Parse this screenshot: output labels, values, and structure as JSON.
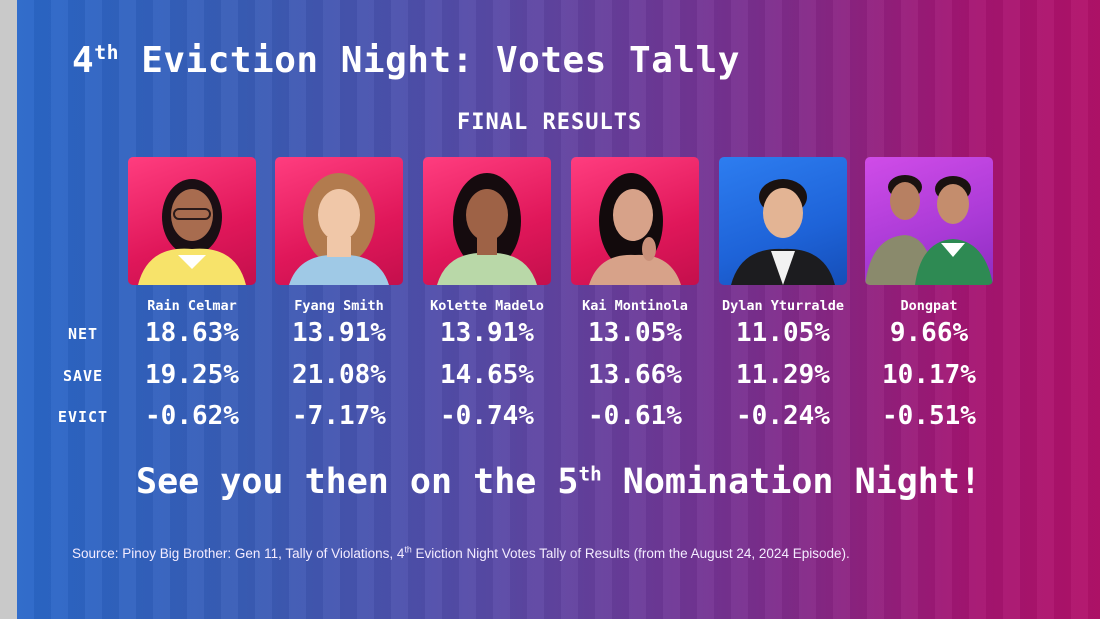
{
  "title": {
    "prefix": "4",
    "sup": "th",
    "suffix": " Eviction Night: Votes Tally"
  },
  "subtitle": "FINAL RESULTS",
  "row_labels": {
    "net": "NET",
    "save": "SAVE",
    "evict": "EVICT"
  },
  "housemates": [
    {
      "name": "Rain Celmar",
      "net": "18.63%",
      "save": "19.25%",
      "evict": "-0.62%",
      "photo_bg": "pink"
    },
    {
      "name": "Fyang Smith",
      "net": "13.91%",
      "save": "21.08%",
      "evict": "-7.17%",
      "photo_bg": "pink"
    },
    {
      "name": "Kolette Madelo",
      "net": "13.91%",
      "save": "14.65%",
      "evict": "-0.74%",
      "photo_bg": "pink"
    },
    {
      "name": "Kai Montinola",
      "net": "13.05%",
      "save": "13.66%",
      "evict": "-0.61%",
      "photo_bg": "pink"
    },
    {
      "name": "Dylan Yturralde",
      "net": "11.05%",
      "save": "11.29%",
      "evict": "-0.24%",
      "photo_bg": "blue"
    },
    {
      "name": "Dongpat",
      "net": "9.66%",
      "save": "10.17%",
      "evict": "-0.51%",
      "photo_bg": "purple"
    }
  ],
  "closing": {
    "prefix": "See you then on the 5",
    "sup": "th",
    "suffix": " Nomination Night!"
  },
  "source": {
    "prefix": "Source: Pinoy Big Brother: Gen 11, Tally of Violations, 4",
    "sup": "th",
    "suffix": " Eviction Night Votes Tally of Results (from the August 24, 2024 Episode)."
  },
  "colors": {
    "pink_bg": "#e0175a",
    "blue_bg": "#1e63d8",
    "purple_bg": "#a93ad6",
    "text": "#ffffff"
  }
}
